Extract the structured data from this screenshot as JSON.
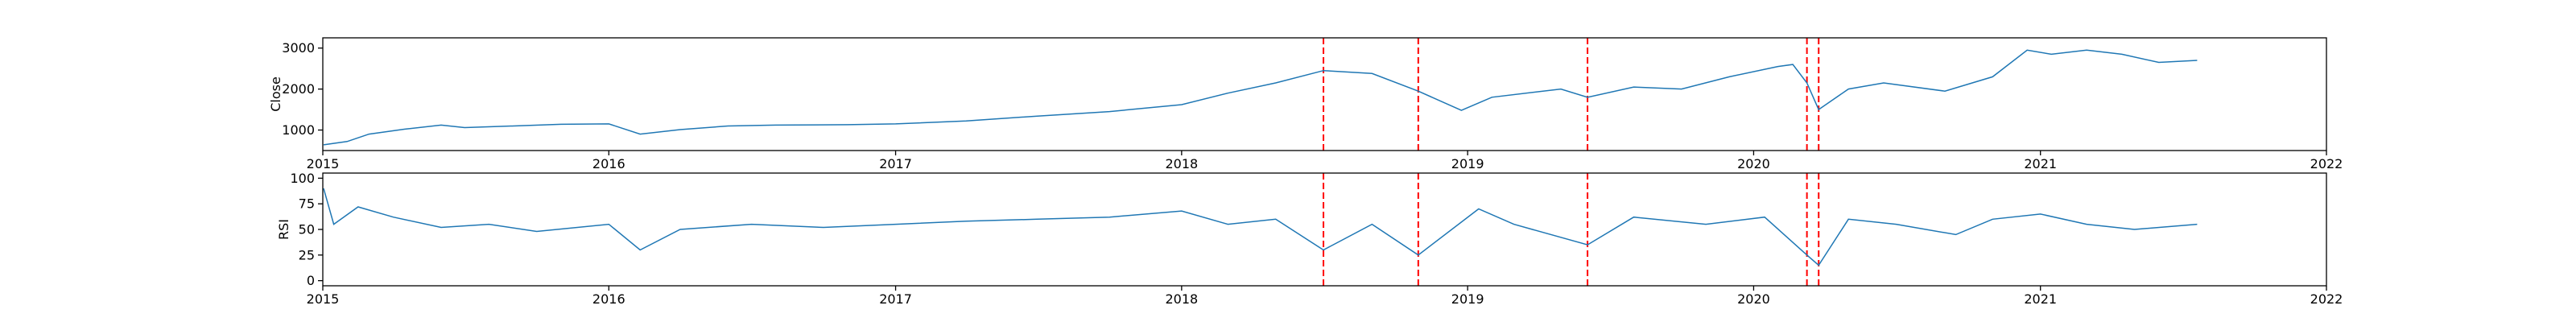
{
  "chart_data": [
    {
      "type": "line",
      "ylabel": "Close",
      "xlim": [
        "2015-01-01",
        "2022-01-01"
      ],
      "ylim": [
        500,
        3250
      ],
      "yticks": [
        1000,
        2000,
        3000
      ],
      "xticks": [
        "2015",
        "2016",
        "2017",
        "2018",
        "2019",
        "2020",
        "2021",
        "2022"
      ],
      "line_color": "#1f77b4",
      "vline_color": "#ff0000",
      "vlines": [
        "2018-07-01",
        "2018-10-30",
        "2019-06-03",
        "2020-03-09",
        "2020-03-24"
      ],
      "series": [
        {
          "x": [
            "2015-01-02",
            "2015-02-01",
            "2015-03-01",
            "2015-04-15",
            "2015-06-01",
            "2015-07-01",
            "2015-09-01",
            "2015-11-01",
            "2016-01-01",
            "2016-02-10",
            "2016-04-01",
            "2016-06-01",
            "2016-08-01",
            "2016-11-01",
            "2017-01-01",
            "2017-04-01",
            "2017-07-01",
            "2017-10-01",
            "2018-01-01",
            "2018-03-01",
            "2018-05-01",
            "2018-07-01",
            "2018-09-01",
            "2018-10-30",
            "2018-12-24",
            "2019-02-01",
            "2019-04-30",
            "2019-06-03",
            "2019-08-01",
            "2019-10-01",
            "2019-12-01",
            "2020-02-01",
            "2020-02-20",
            "2020-03-09",
            "2020-03-24",
            "2020-05-01",
            "2020-06-15",
            "2020-09-01",
            "2020-11-01",
            "2020-12-15",
            "2021-01-15",
            "2021-03-01",
            "2021-04-15",
            "2021-06-01",
            "2021-07-20"
          ],
          "values": [
            640,
            720,
            900,
            1020,
            1120,
            1060,
            1100,
            1140,
            1150,
            900,
            1010,
            1100,
            1120,
            1130,
            1150,
            1220,
            1340,
            1450,
            1620,
            1900,
            2150,
            2450,
            2380,
            1950,
            1480,
            1800,
            2000,
            1800,
            2050,
            2000,
            2300,
            2550,
            2600,
            2150,
            1500,
            2000,
            2150,
            1950,
            2300,
            2950,
            2850,
            2950,
            2850,
            2650,
            2700
          ]
        }
      ]
    },
    {
      "type": "line",
      "ylabel": "RSI",
      "xlim": [
        "2015-01-01",
        "2022-01-01"
      ],
      "ylim": [
        -5,
        105
      ],
      "yticks": [
        0,
        25,
        50,
        75,
        100
      ],
      "xticks": [
        "2015",
        "2016",
        "2017",
        "2018",
        "2019",
        "2020",
        "2021",
        "2022"
      ],
      "line_color": "#1f77b4",
      "vline_color": "#ff0000",
      "vlines": [
        "2018-07-01",
        "2018-10-30",
        "2019-06-03",
        "2020-03-09",
        "2020-03-24"
      ],
      "series": [
        {
          "x": [
            "2015-01-02",
            "2015-01-15",
            "2015-02-15",
            "2015-04-01",
            "2015-06-01",
            "2015-08-01",
            "2015-10-01",
            "2016-01-01",
            "2016-02-10",
            "2016-04-01",
            "2016-07-01",
            "2016-10-01",
            "2017-01-01",
            "2017-04-01",
            "2017-07-01",
            "2017-10-01",
            "2018-01-01",
            "2018-03-01",
            "2018-05-01",
            "2018-07-01",
            "2018-09-01",
            "2018-10-30",
            "2019-01-15",
            "2019-03-01",
            "2019-06-03",
            "2019-08-01",
            "2019-11-01",
            "2020-01-15",
            "2020-03-09",
            "2020-03-24",
            "2020-05-01",
            "2020-07-01",
            "2020-09-15",
            "2020-11-01",
            "2021-01-01",
            "2021-03-01",
            "2021-05-01",
            "2021-07-20"
          ],
          "values": [
            90,
            55,
            72,
            62,
            52,
            55,
            48,
            55,
            30,
            50,
            55,
            52,
            55,
            58,
            60,
            62,
            68,
            55,
            60,
            30,
            55,
            25,
            70,
            55,
            35,
            62,
            55,
            62,
            25,
            15,
            60,
            55,
            45,
            60,
            65,
            55,
            50,
            55
          ]
        }
      ]
    }
  ]
}
